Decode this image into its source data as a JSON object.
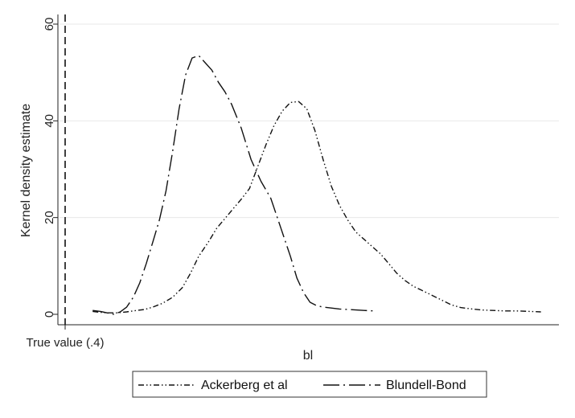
{
  "chart_data": {
    "type": "line",
    "title": "",
    "xlabel": "bl",
    "ylabel": "Kernel density estimate",
    "ylim": [
      0,
      60
    ],
    "yticks": [
      0,
      20,
      40,
      60
    ],
    "xlim": [
      0.4,
      0.553
    ],
    "reference_line": {
      "x": 0.4,
      "label": "True value (.4)",
      "style": "dashed"
    },
    "grid": true,
    "legend_position": "bottom",
    "colors": {
      "line": "#111111",
      "grid": "#e8e8e8",
      "axis": "#222222",
      "legend_border": "#333333"
    },
    "series": [
      {
        "name": "Ackerberg et al",
        "dash": "dash-dot-dot",
        "x": [
          0.4106,
          0.413,
          0.4155,
          0.418,
          0.421,
          0.424,
          0.4265,
          0.429,
          0.432,
          0.435,
          0.438,
          0.4405,
          0.443,
          0.446,
          0.4485,
          0.451,
          0.4535,
          0.456,
          0.4585,
          0.461,
          0.4635,
          0.466,
          0.4685,
          0.471,
          0.4735,
          0.476,
          0.4785,
          0.481,
          0.4835,
          0.486,
          0.4885,
          0.491,
          0.4935,
          0.496,
          0.4985,
          0.501,
          0.5035,
          0.506,
          0.5085,
          0.511,
          0.514,
          0.517,
          0.52,
          0.523,
          0.5265,
          0.5295,
          0.533,
          0.5365,
          0.54,
          0.544,
          0.5475
        ],
        "y": [
          0.6,
          0.4,
          0.3,
          0.3,
          0.5,
          0.8,
          1.0,
          1.5,
          2.3,
          3.5,
          5.5,
          8.5,
          12.0,
          15.0,
          17.8,
          19.8,
          21.8,
          23.8,
          26.0,
          30.5,
          35.0,
          39.0,
          42.0,
          43.8,
          44.0,
          42.5,
          38.0,
          32.0,
          26.5,
          22.5,
          19.5,
          17.0,
          15.5,
          14.0,
          12.5,
          10.5,
          8.5,
          7.0,
          5.8,
          5.0,
          4.0,
          3.0,
          2.0,
          1.4,
          1.1,
          0.9,
          0.8,
          0.7,
          0.7,
          0.6,
          0.5
        ]
      },
      {
        "name": "Blundell-Bond",
        "dash": "long-dash-dot",
        "x": [
          0.4106,
          0.413,
          0.415,
          0.417,
          0.419,
          0.421,
          0.423,
          0.425,
          0.427,
          0.429,
          0.431,
          0.433,
          0.435,
          0.437,
          0.439,
          0.441,
          0.443,
          0.445,
          0.447,
          0.449,
          0.451,
          0.453,
          0.456,
          0.459,
          0.462,
          0.465,
          0.468,
          0.471,
          0.473,
          0.475,
          0.477,
          0.479,
          0.481,
          0.4835,
          0.486,
          0.4885,
          0.491,
          0.4935,
          0.4965
        ],
        "y": [
          0.8,
          0.6,
          0.3,
          0.0,
          0.5,
          1.5,
          3.5,
          6.5,
          10.5,
          15.0,
          19.5,
          25.5,
          33.5,
          42.5,
          49.5,
          53.0,
          53.5,
          52.0,
          50.5,
          48.0,
          46.0,
          43.5,
          38.5,
          32.0,
          27.5,
          24.0,
          18.0,
          12.0,
          7.5,
          4.5,
          2.5,
          1.8,
          1.5,
          1.3,
          1.1,
          1.0,
          0.9,
          0.8,
          0.7
        ]
      }
    ]
  }
}
